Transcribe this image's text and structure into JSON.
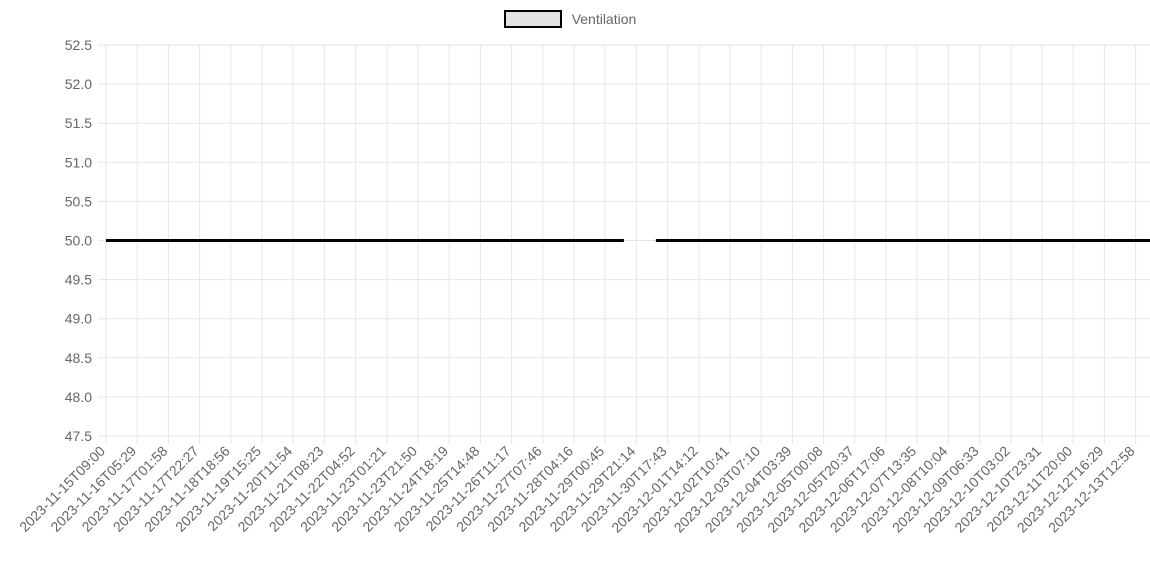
{
  "chart_data": {
    "type": "line",
    "x_tick_labels": [
      "2023-11-15T09:00",
      "2023-11-16T05:29",
      "2023-11-17T01:58",
      "2023-11-17T22:27",
      "2023-11-18T18:56",
      "2023-11-19T15:25",
      "2023-11-20T11:54",
      "2023-11-21T08:23",
      "2023-11-22T04:52",
      "2023-11-23T01:21",
      "2023-11-23T21:50",
      "2023-11-24T18:19",
      "2023-11-25T14:48",
      "2023-11-26T11:17",
      "2023-11-27T07:46",
      "2023-11-28T04:16",
      "2023-11-29T00:45",
      "2023-11-29T21:14",
      "2023-11-30T17:43",
      "2023-12-01T14:12",
      "2023-12-02T10:41",
      "2023-12-03T07:10",
      "2023-12-04T03:39",
      "2023-12-05T00:08",
      "2023-12-05T20:37",
      "2023-12-06T17:06",
      "2023-12-07T13:35",
      "2023-12-08T10:04",
      "2023-12-09T06:33",
      "2023-12-10T03:02",
      "2023-12-10T23:31",
      "2023-12-11T20:00",
      "2023-12-12T16:29",
      "2023-12-13T12:58"
    ],
    "series": [
      {
        "name": "Ventilation",
        "segments": [
          {
            "x_start": "2023-11-15T09:00",
            "x_end": "2023-11-29T13:00",
            "y": 50.0
          },
          {
            "x_start": "2023-11-30T10:00",
            "x_end": "2023-12-14T09:00",
            "y": 50.0
          }
        ]
      }
    ],
    "ylim": [
      47.5,
      52.5
    ],
    "y_tick_labels": [
      "52.5",
      "52.0",
      "51.5",
      "51.0",
      "50.5",
      "50.0",
      "49.5",
      "49.0",
      "48.5",
      "48.0",
      "47.5"
    ],
    "grid": true,
    "legend_position": "top",
    "colors": {
      "line": "#000000",
      "legend_fill": "#e3e3e3",
      "grid": "#e5e5e5",
      "text": "#666666"
    }
  }
}
